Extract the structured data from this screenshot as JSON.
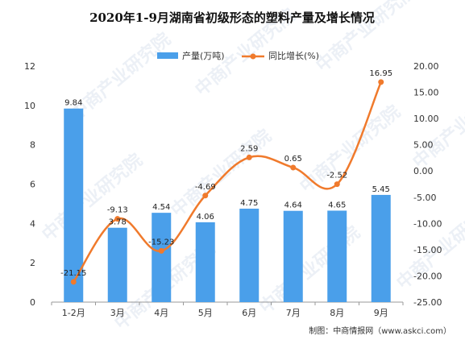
{
  "chart_data": {
    "type": "bar+line",
    "title": "2020年1-9月湖南省初级形态的塑料产量及增长情况",
    "categories": [
      "1-2月",
      "3月",
      "4月",
      "5月",
      "6月",
      "7月",
      "8月",
      "9月"
    ],
    "series": [
      {
        "name": "产量(万吨)",
        "type": "bar",
        "axis": "left",
        "color": "#4a9fea",
        "values": [
          9.84,
          3.78,
          4.54,
          4.06,
          4.75,
          4.64,
          4.65,
          5.45
        ],
        "labels": [
          "9.84",
          "3.78",
          "4.54",
          "4.06",
          "4.75",
          "4.64",
          "4.65",
          "5.45"
        ]
      },
      {
        "name": "同比增长(%)",
        "type": "line",
        "axis": "right",
        "color": "#f07a2c",
        "smooth": true,
        "values": [
          -21.15,
          -9.13,
          -15.23,
          -4.69,
          2.59,
          0.65,
          -2.52,
          16.95
        ],
        "labels": [
          "-21.15",
          "-9.13",
          "-15.23",
          "-4.69",
          "2.59",
          "0.65",
          "-2.52",
          "16.95"
        ]
      }
    ],
    "y_left": {
      "min": 0,
      "max": 12,
      "ticks": [
        "0",
        "2",
        "4",
        "6",
        "8",
        "10",
        "12"
      ]
    },
    "y_right": {
      "min": -25,
      "max": 20,
      "ticks": [
        "-25.00",
        "-20.00",
        "-15.00",
        "-10.00",
        "-5.00",
        "0.00",
        "5.00",
        "10.00",
        "15.00",
        "20.00"
      ]
    },
    "legend_position": "top-center",
    "grid": false
  },
  "source": "制图：中商情报网（www.askci.com）",
  "watermark": "中商产业研究院"
}
